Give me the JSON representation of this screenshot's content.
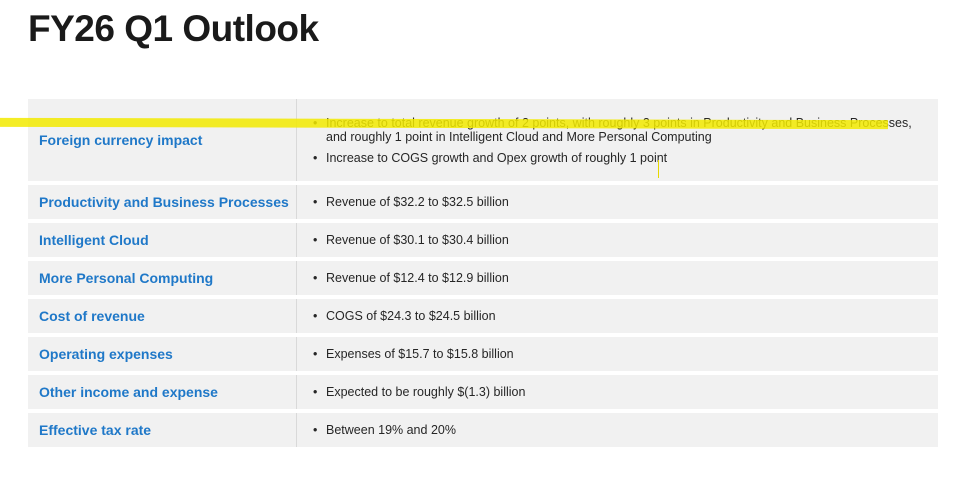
{
  "slide": {
    "title": "FY26 Q1 Outlook"
  },
  "rows": [
    {
      "category": "Foreign currency impact",
      "bullets": [
        "Increase to total revenue growth of 2 points, with roughly 3 points in Productivity and Business Processes, and roughly 1 point in Intelligent Cloud and More Personal Computing",
        "Increase to COGS growth and Opex growth of roughly 1 point"
      ]
    },
    {
      "category": "Productivity and Business Processes",
      "bullets": [
        "Revenue of $32.2 to $32.5 billion"
      ]
    },
    {
      "category": "Intelligent Cloud",
      "bullets": [
        "Revenue of $30.1 to $30.4 billion"
      ]
    },
    {
      "category": "More Personal Computing",
      "bullets": [
        "Revenue of $12.4 to $12.9 billion"
      ]
    },
    {
      "category": "Cost of revenue",
      "bullets": [
        "COGS of $24.3 to $24.5 billion"
      ]
    },
    {
      "category": "Operating expenses",
      "bullets": [
        "Expenses of $15.7 to $15.8 billion"
      ]
    },
    {
      "category": "Other income and expense",
      "bullets": [
        "Expected to be roughly $(1.3) billion"
      ]
    },
    {
      "category": "Effective tax rate",
      "bullets": [
        "Between 19% and 20%"
      ]
    }
  ],
  "colors": {
    "category_text": "#1f78c8",
    "row_background": "#f1f1f1",
    "highlight": "#f2ea00"
  }
}
